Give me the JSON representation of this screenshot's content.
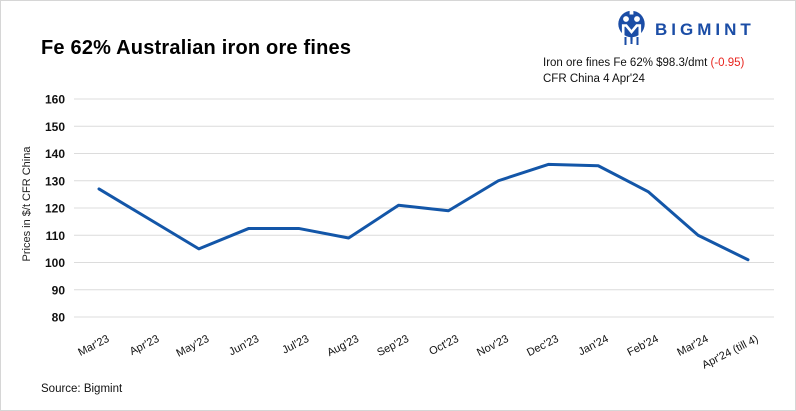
{
  "header": {
    "title": "Fe 62% Australian iron ore fines",
    "brand": "BIGMINT"
  },
  "annotation": {
    "line1_main": "Iron ore fines Fe 62% $98.3/dmt ",
    "line1_change": "(-0.95)",
    "line2": "CFR China 4 Apr'24",
    "change_color": "#e8251f"
  },
  "footer": {
    "source": "Source: Bigmint"
  },
  "chart_data": {
    "type": "line",
    "title": "Fe 62% Australian iron ore fines",
    "categories": [
      "Mar'23",
      "Apr'23",
      "May'23",
      "Jun'23",
      "Jul'23",
      "Aug'23",
      "Sep'23",
      "Oct'23",
      "Nov'23",
      "Dec'23",
      "Jan'24",
      "Feb'24",
      "Mar'24",
      "Apr'24 (till 4)"
    ],
    "values": [
      127,
      116,
      105,
      112.5,
      112.5,
      109,
      121,
      119,
      130,
      136,
      135.5,
      126,
      110,
      101
    ],
    "xlabel": "",
    "ylabel": "Prices in $/t CFR China",
    "ylim": [
      80,
      160
    ],
    "ytick_step": 10,
    "grid": true,
    "legend": "none",
    "line_color": "#1356a8",
    "grid_color": "#dcdcdc",
    "line_width": 3
  }
}
